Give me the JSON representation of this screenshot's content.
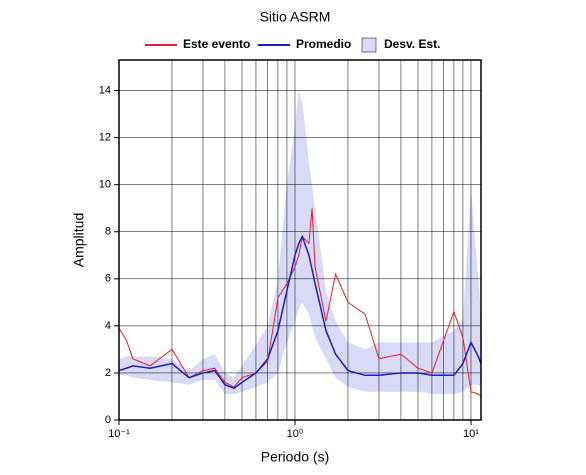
{
  "chart_data": {
    "type": "line",
    "title": "Sitio ASRM",
    "xlabel": "Periodo (s)",
    "ylabel": "Amplitud",
    "xscale": "log",
    "grid": true,
    "legend": "top",
    "xlim": [
      0.1,
      11.4
    ],
    "ylim": [
      0,
      15.3
    ],
    "xticks": [
      {
        "value": 0.1,
        "label": "10⁻¹"
      },
      {
        "value": 1,
        "label": "10⁰"
      },
      {
        "value": 10,
        "label": "10¹"
      }
    ],
    "yticks": [
      0,
      2,
      4,
      6,
      8,
      10,
      12,
      14
    ],
    "x": [
      0.1,
      0.11,
      0.12,
      0.15,
      0.2,
      0.25,
      0.3,
      0.35,
      0.4,
      0.45,
      0.5,
      0.6,
      0.7,
      0.8,
      0.9,
      1.0,
      1.05,
      1.1,
      1.2,
      1.25,
      1.3,
      1.5,
      1.7,
      2,
      2.5,
      3,
      4,
      5,
      6,
      8,
      9,
      10,
      11,
      11.4
    ],
    "series": [
      {
        "name": "Este evento",
        "color": "#ee1c24",
        "values": [
          3.9,
          3.4,
          2.6,
          2.3,
          3.0,
          1.8,
          2.1,
          2.2,
          1.6,
          1.4,
          1.8,
          2.0,
          2.5,
          5.2,
          5.8,
          6.5,
          7.0,
          7.8,
          7.5,
          9.0,
          6.5,
          4.2,
          6.2,
          5.0,
          4.5,
          2.6,
          2.8,
          2.2,
          2.0,
          4.6,
          3.5,
          1.2,
          1.1,
          1.0
        ]
      },
      {
        "name": "Promedio",
        "color": "#1a1ad0",
        "values": [
          2.1,
          2.2,
          2.3,
          2.2,
          2.4,
          1.8,
          2.0,
          2.1,
          1.5,
          1.35,
          1.6,
          2.0,
          2.6,
          3.8,
          5.5,
          7.0,
          7.5,
          7.8,
          7.0,
          6.4,
          5.8,
          3.8,
          2.8,
          2.1,
          1.9,
          1.9,
          2.0,
          2.0,
          1.9,
          1.9,
          2.4,
          3.3,
          2.7,
          2.4
        ]
      },
      {
        "name": "Desv. Est.",
        "color": "#d8daf8",
        "band": true,
        "upper": [
          2.6,
          2.7,
          2.7,
          2.7,
          2.6,
          2.1,
          2.6,
          2.8,
          2.0,
          1.8,
          2.3,
          3.2,
          4.0,
          6.0,
          10,
          12.5,
          14.0,
          13.5,
          11.0,
          10.0,
          9.0,
          5.5,
          4.2,
          3.3,
          3.0,
          3.3,
          3.3,
          3.3,
          3.3,
          3.8,
          4.3,
          9.8,
          6.0,
          4.5
        ],
        "lower": [
          1.9,
          1.9,
          1.8,
          1.7,
          1.6,
          1.5,
          1.7,
          1.7,
          1.1,
          1.1,
          1.2,
          1.4,
          1.6,
          2.0,
          3.3,
          4.2,
          4.7,
          5.0,
          4.5,
          4.0,
          3.5,
          2.6,
          1.8,
          1.4,
          1.2,
          1.2,
          1.2,
          1.2,
          1.1,
          1.1,
          1.2,
          1.5,
          1.5,
          1.4
        ]
      }
    ]
  }
}
